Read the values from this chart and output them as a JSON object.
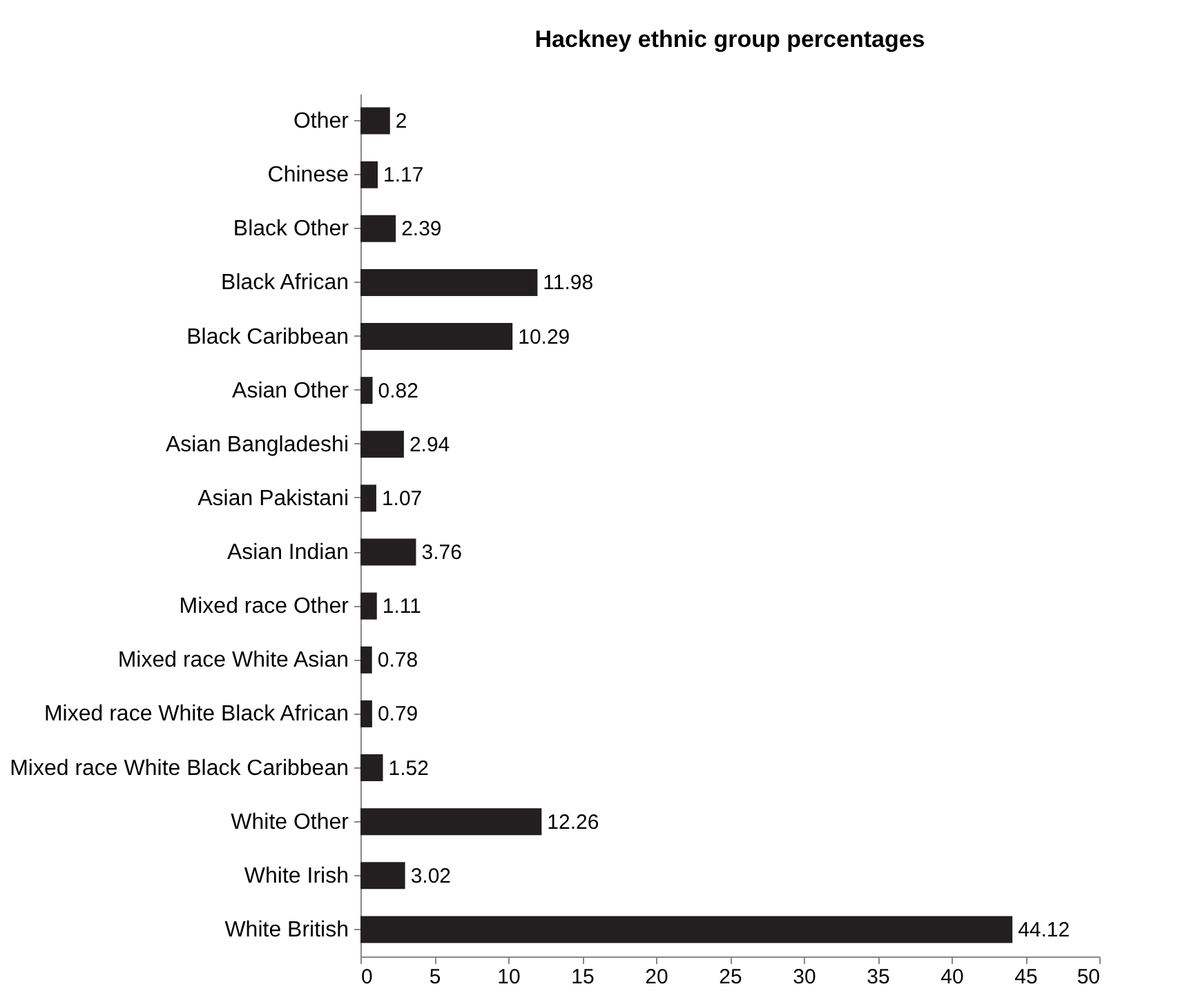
{
  "chart_data": {
    "type": "bar",
    "title": "Hackney ethnic group percentages",
    "orientation": "horizontal",
    "categories": [
      "Other",
      "Chinese",
      "Black Other",
      "Black African",
      "Black Caribbean",
      "Asian Other",
      "Asian Bangladeshi",
      "Asian Pakistani",
      "Asian Indian",
      "Mixed race Other",
      "Mixed race White Asian",
      "Mixed race White Black African",
      "Mixed race White Black Caribbean",
      "White Other",
      "White Irish",
      "White British"
    ],
    "values": [
      2,
      1.17,
      2.39,
      11.98,
      10.29,
      0.82,
      2.94,
      1.07,
      3.76,
      1.11,
      0.78,
      0.79,
      1.52,
      12.26,
      3.02,
      44.12
    ],
    "color": "#231f20",
    "data_labels": true,
    "xlim": [
      0,
      50
    ],
    "xticks": [
      0,
      5,
      10,
      15,
      20,
      25,
      30,
      35,
      40,
      45,
      50
    ]
  }
}
